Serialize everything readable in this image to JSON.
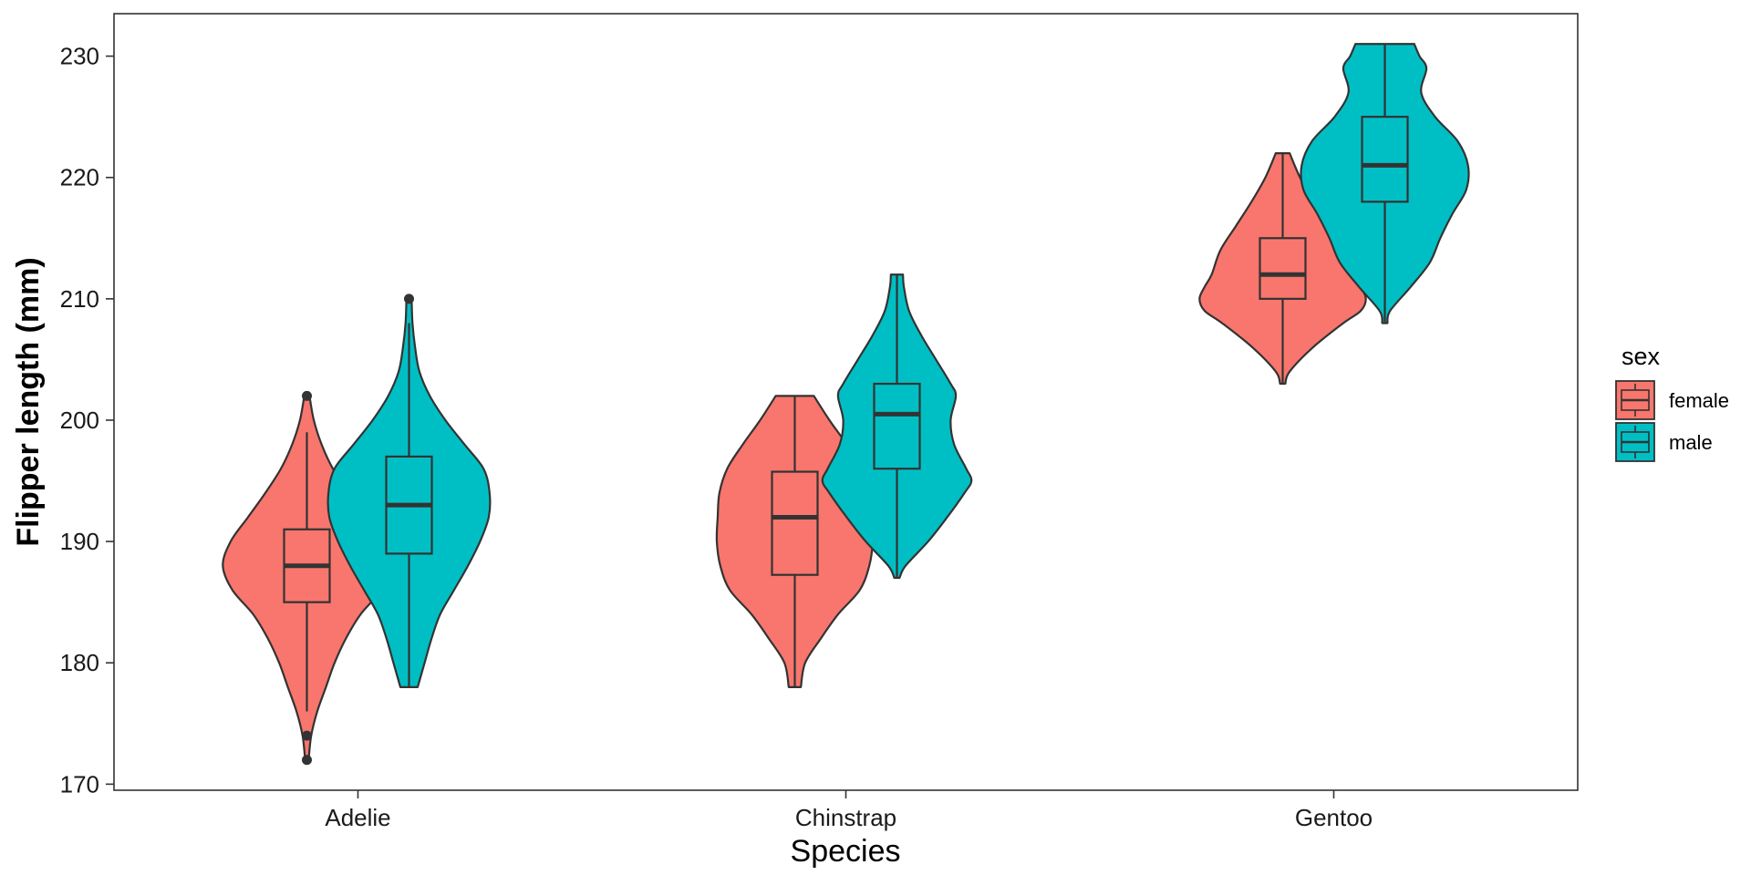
{
  "chart_data": {
    "type": "violin",
    "xlabel": "Species",
    "ylabel": "Flipper length (mm)",
    "ylim": [
      169.5,
      233.5
    ],
    "yticks": [
      170,
      180,
      190,
      200,
      210,
      220,
      230
    ],
    "categories": [
      "Adelie",
      "Chinstrap",
      "Gentoo"
    ],
    "grid": false,
    "legend": {
      "title": "sex",
      "position": "right",
      "items": [
        {
          "label": "female",
          "color": "#F8766D"
        },
        {
          "label": "male",
          "color": "#00BFC4"
        }
      ]
    },
    "series": [
      {
        "name": "female",
        "color": "#F8766D",
        "groups": [
          {
            "category": "Adelie",
            "min": 172,
            "max": 202,
            "q1": 185,
            "median": 188,
            "q3": 191,
            "whisker_low": 176,
            "whisker_high": 199,
            "outliers": [
              172,
              174,
              202
            ],
            "profile": [
              [
                172,
                0.02
              ],
              [
                174,
                0.05
              ],
              [
                176,
                0.12
              ],
              [
                178,
                0.22
              ],
              [
                180,
                0.32
              ],
              [
                182,
                0.45
              ],
              [
                184,
                0.62
              ],
              [
                186,
                0.86
              ],
              [
                188,
                0.97
              ],
              [
                190,
                0.88
              ],
              [
                192,
                0.68
              ],
              [
                194,
                0.48
              ],
              [
                196,
                0.3
              ],
              [
                198,
                0.17
              ],
              [
                200,
                0.08
              ],
              [
                202,
                0.03
              ]
            ]
          },
          {
            "category": "Chinstrap",
            "min": 178,
            "max": 202,
            "q1": 187.25,
            "median": 192,
            "q3": 195.75,
            "whisker_low": 178,
            "whisker_high": 202,
            "outliers": [],
            "profile": [
              [
                178,
                0.07
              ],
              [
                180,
                0.12
              ],
              [
                182,
                0.3
              ],
              [
                184,
                0.5
              ],
              [
                186,
                0.75
              ],
              [
                188,
                0.86
              ],
              [
                190,
                0.9
              ],
              [
                192,
                0.89
              ],
              [
                194,
                0.87
              ],
              [
                196,
                0.78
              ],
              [
                198,
                0.6
              ],
              [
                200,
                0.4
              ],
              [
                202,
                0.22
              ]
            ]
          },
          {
            "category": "Gentoo",
            "min": 203,
            "max": 222,
            "q1": 210,
            "median": 212,
            "q3": 215,
            "whisker_low": 203,
            "whisker_high": 222,
            "outliers": [],
            "profile": [
              [
                203,
                0.03
              ],
              [
                204,
                0.08
              ],
              [
                206,
                0.35
              ],
              [
                208,
                0.7
              ],
              [
                209,
                0.9
              ],
              [
                210,
                0.96
              ],
              [
                211,
                0.9
              ],
              [
                212,
                0.82
              ],
              [
                214,
                0.72
              ],
              [
                216,
                0.54
              ],
              [
                218,
                0.36
              ],
              [
                220,
                0.2
              ],
              [
                222,
                0.08
              ]
            ]
          }
        ]
      },
      {
        "name": "male",
        "color": "#00BFC4",
        "groups": [
          {
            "category": "Adelie",
            "min": 178,
            "max": 210,
            "q1": 189,
            "median": 193,
            "q3": 197,
            "whisker_low": 178,
            "whisker_high": 208,
            "outliers": [
              210
            ],
            "profile": [
              [
                178,
                0.1
              ],
              [
                180,
                0.18
              ],
              [
                182,
                0.26
              ],
              [
                184,
                0.36
              ],
              [
                186,
                0.52
              ],
              [
                188,
                0.68
              ],
              [
                190,
                0.82
              ],
              [
                192,
                0.92
              ],
              [
                194,
                0.93
              ],
              [
                196,
                0.86
              ],
              [
                198,
                0.64
              ],
              [
                200,
                0.42
              ],
              [
                202,
                0.24
              ],
              [
                204,
                0.12
              ],
              [
                206,
                0.07
              ],
              [
                208,
                0.04
              ],
              [
                210,
                0.03
              ]
            ]
          },
          {
            "category": "Chinstrap",
            "min": 187,
            "max": 212,
            "q1": 196,
            "median": 200.5,
            "q3": 203,
            "whisker_low": 187,
            "whisker_high": 212,
            "outliers": [],
            "profile": [
              [
                187,
                0.03
              ],
              [
                188,
                0.1
              ],
              [
                190,
                0.36
              ],
              [
                192,
                0.58
              ],
              [
                194,
                0.78
              ],
              [
                195,
                0.86
              ],
              [
                196,
                0.8
              ],
              [
                198,
                0.66
              ],
              [
                200,
                0.62
              ],
              [
                202,
                0.68
              ],
              [
                203,
                0.62
              ],
              [
                205,
                0.45
              ],
              [
                207,
                0.28
              ],
              [
                209,
                0.14
              ],
              [
                211,
                0.08
              ],
              [
                212,
                0.07
              ]
            ]
          },
          {
            "category": "Gentoo",
            "min": 208,
            "max": 231,
            "q1": 218,
            "median": 221,
            "q3": 225,
            "whisker_low": 208,
            "whisker_high": 231,
            "outliers": [],
            "profile": [
              [
                208,
                0.03
              ],
              [
                209,
                0.06
              ],
              [
                211,
                0.3
              ],
              [
                213,
                0.52
              ],
              [
                215,
                0.64
              ],
              [
                217,
                0.78
              ],
              [
                219,
                0.94
              ],
              [
                221,
                0.96
              ],
              [
                223,
                0.84
              ],
              [
                225,
                0.58
              ],
              [
                227,
                0.42
              ],
              [
                229,
                0.48
              ],
              [
                230,
                0.4
              ],
              [
                231,
                0.34
              ]
            ]
          }
        ]
      }
    ]
  }
}
